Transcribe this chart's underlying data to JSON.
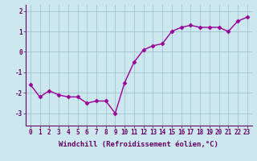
{
  "x": [
    0,
    1,
    2,
    3,
    4,
    5,
    6,
    7,
    8,
    9,
    10,
    11,
    12,
    13,
    14,
    15,
    16,
    17,
    18,
    19,
    20,
    21,
    22,
    23
  ],
  "y": [
    -1.6,
    -2.2,
    -1.9,
    -2.1,
    -2.2,
    -2.2,
    -2.5,
    -2.4,
    -2.4,
    -3.0,
    -1.5,
    -0.5,
    0.1,
    0.3,
    0.4,
    1.0,
    1.2,
    1.3,
    1.2,
    1.2,
    1.2,
    1.0,
    1.5,
    1.7
  ],
  "line_color": "#990099",
  "marker": "D",
  "markersize": 2.5,
  "linewidth": 1.0,
  "bg_color": "#cce8ee",
  "grid_color": "#99bbcc",
  "xlabel": "Windchill (Refroidissement éolien,°C)",
  "xlabel_fontsize": 6.5,
  "tick_fontsize": 5.5,
  "ytick_labels": [
    "2",
    "1",
    "0",
    "-1",
    "-2",
    "-3"
  ],
  "yticks": [
    2,
    1,
    0,
    -1,
    -2,
    -3
  ],
  "xtick_labels": [
    "0",
    "1",
    "2",
    "3",
    "4",
    "5",
    "6",
    "7",
    "8",
    "9",
    "10",
    "11",
    "12",
    "13",
    "14",
    "15",
    "16",
    "17",
    "18",
    "19",
    "20",
    "21",
    "22",
    "23"
  ],
  "ylim": [
    -3.6,
    2.3
  ],
  "xlim": [
    -0.5,
    23.5
  ],
  "spine_color": "#660066",
  "tick_color": "#660066"
}
